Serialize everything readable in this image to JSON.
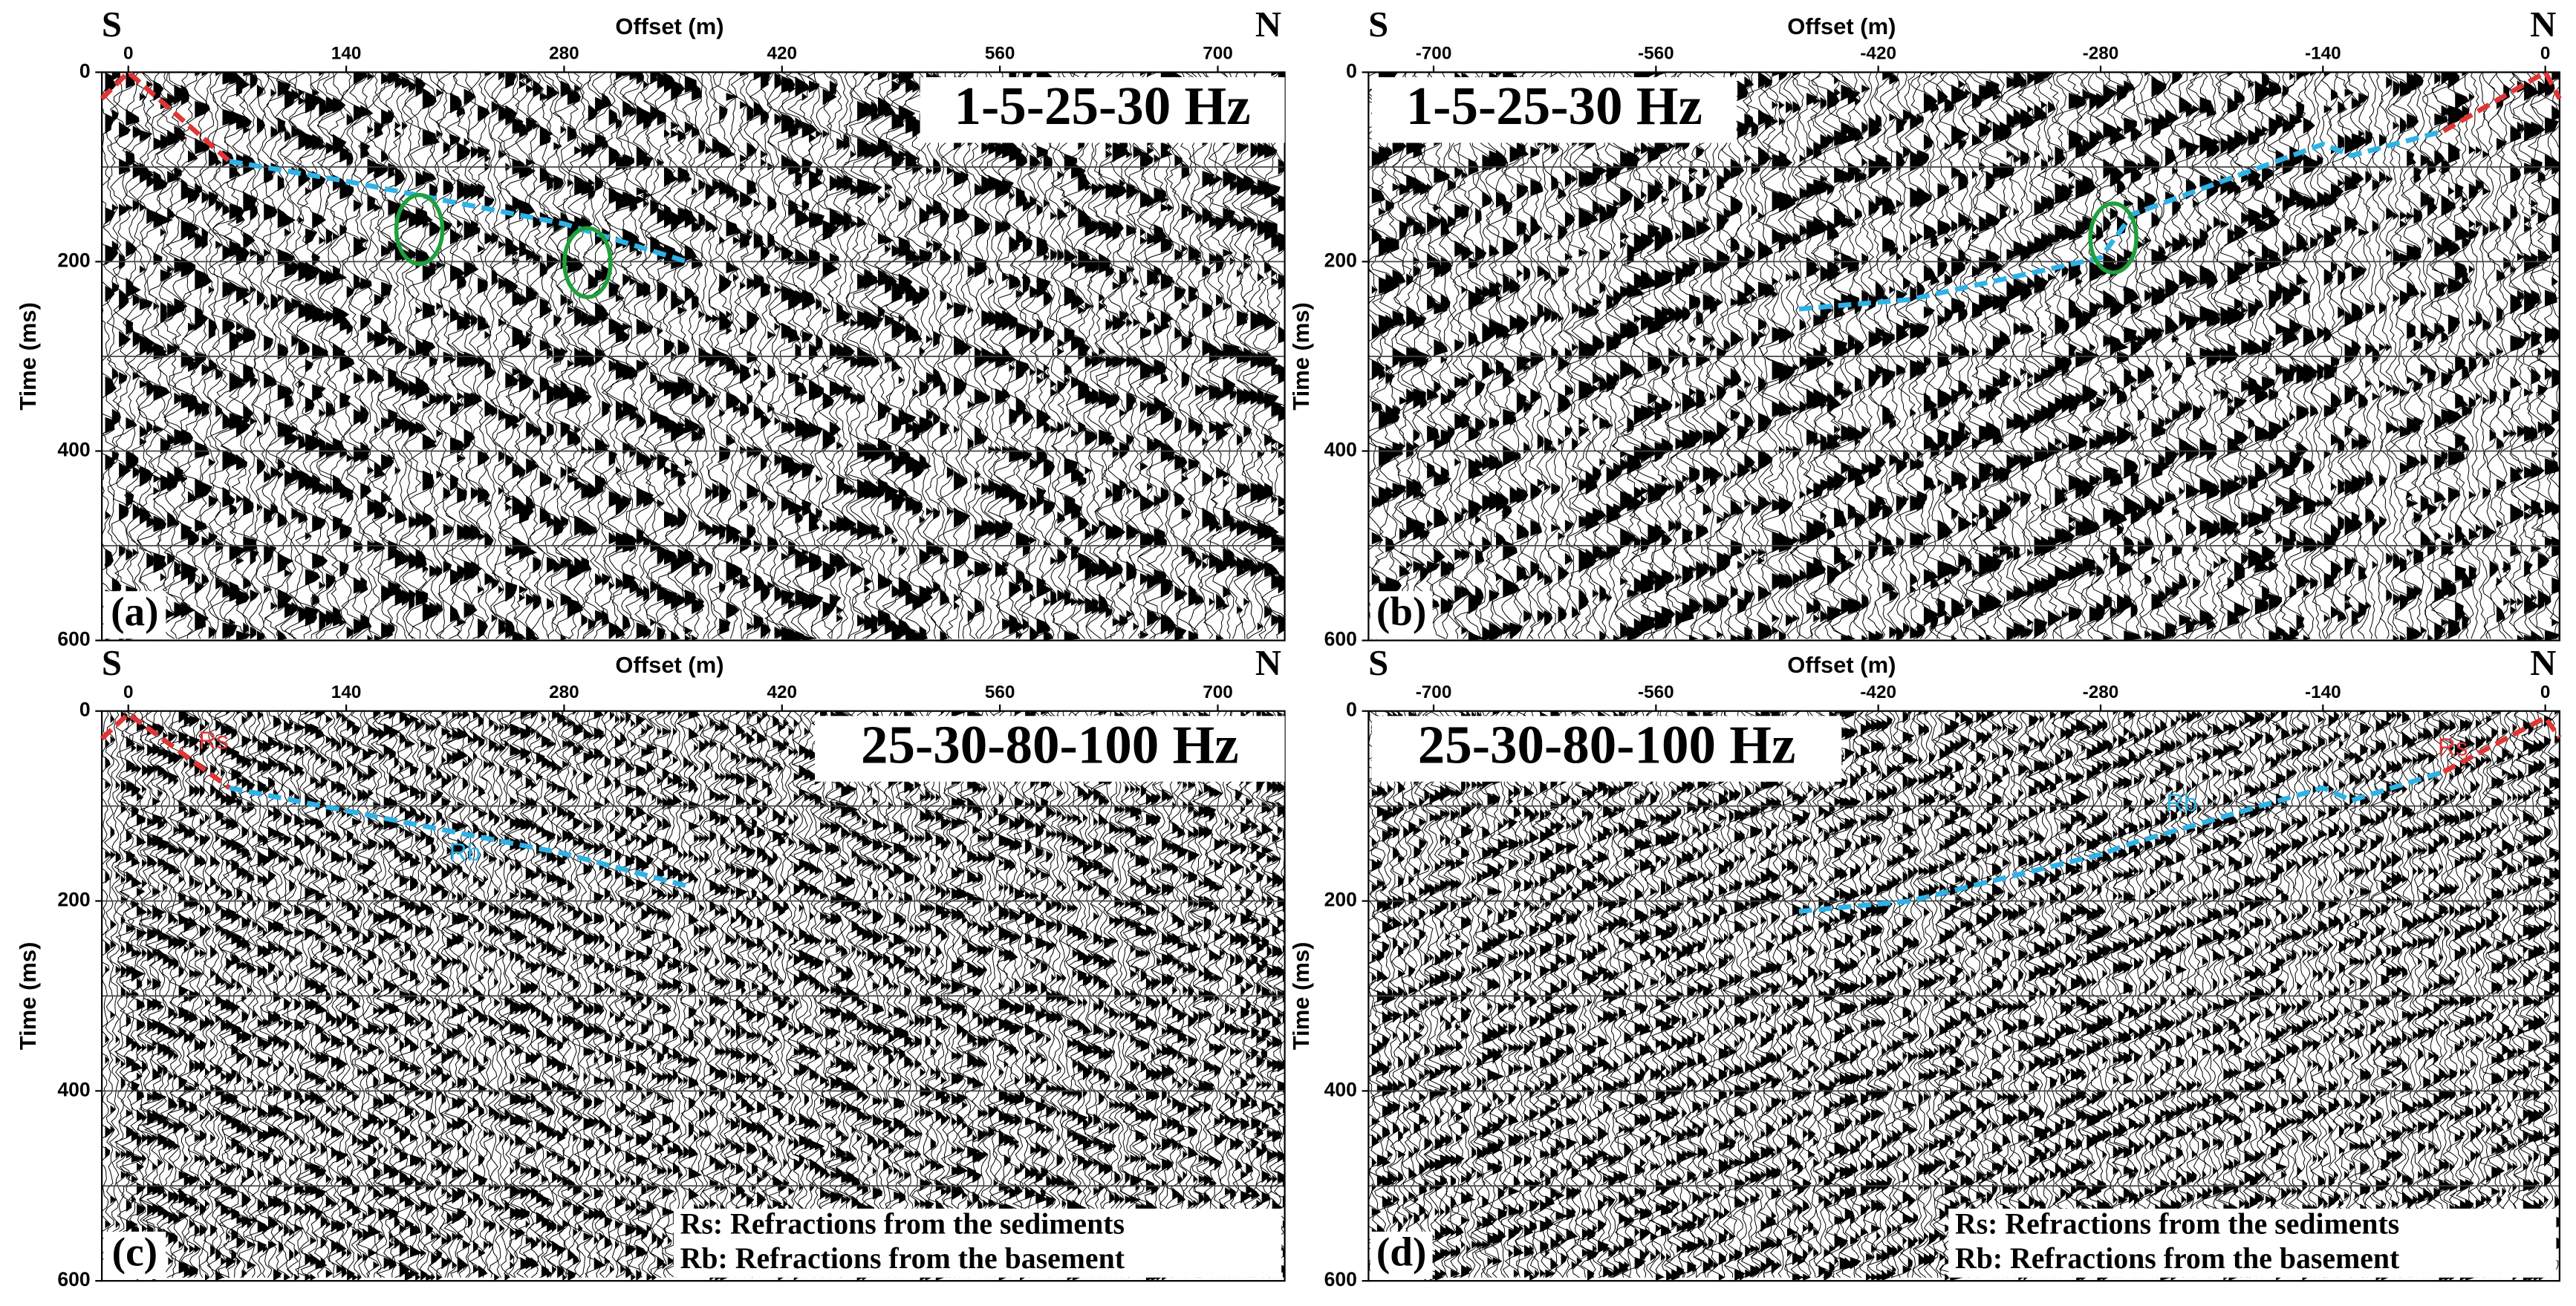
{
  "chart_data": [
    {
      "type": "seismic",
      "panel_label": "(a)",
      "left_label": "S",
      "right_label": "N",
      "x_label": "Offset (m)",
      "y_label": "Time (ms)",
      "filter_label": "1-5-25-30 Hz",
      "xlim": [
        -17,
        743
      ],
      "xticks": [
        0,
        140,
        280,
        420,
        560,
        700
      ],
      "ylim": [
        0,
        600
      ],
      "yticks": [
        0,
        200,
        400,
        600
      ],
      "ygrid": [
        100,
        200,
        300,
        400,
        500
      ],
      "y_inverted": true,
      "series": [
        {
          "color": "#e03535",
          "x": [
            -17,
            0,
            65
          ],
          "values": [
            28,
            0,
            94
          ]
        },
        {
          "color": "#2fb2e6",
          "x": [
            65,
            140,
            280,
            361
          ],
          "values": [
            94,
            115,
            160,
            201
          ]
        }
      ],
      "circles": {
        "color": "#1fa03c",
        "x": [
          187,
          295
        ],
        "values": [
          166,
          201
        ]
      }
    },
    {
      "type": "seismic",
      "panel_label": "(b)",
      "left_label": "S",
      "right_label": "N",
      "x_label": "Offset (m)",
      "y_label": "Time (ms)",
      "filter_label": "1-5-25-30 Hz",
      "xlim": [
        -741,
        9
      ],
      "xticks": [
        -700,
        -560,
        -420,
        -280,
        -140,
        0
      ],
      "ylim": [
        0,
        600
      ],
      "yticks": [
        0,
        200,
        400,
        600
      ],
      "ygrid": [
        100,
        200,
        300,
        400,
        500
      ],
      "y_inverted": true,
      "series": [
        {
          "color": "#e03535",
          "x": [
            -64,
            0,
            9
          ],
          "values": [
            62,
            0,
            28
          ]
        },
        {
          "color": "#2fb2e6",
          "x": [
            -470,
            -400,
            -280,
            -260,
            -140,
            -122,
            -64
          ],
          "values": [
            250,
            240,
            196,
            150,
            76,
            88,
            62
          ]
        }
      ],
      "circles": {
        "color": "#1fa03c",
        "x": [
          -272
        ],
        "values": [
          175
        ]
      }
    },
    {
      "type": "seismic",
      "panel_label": "(c)",
      "left_label": "S",
      "right_label": "N",
      "x_label": "Offset (m)",
      "y_label": "Time (ms)",
      "filter_label": "25-30-80-100 Hz",
      "xlim": [
        -17,
        743
      ],
      "xticks": [
        0,
        140,
        280,
        420,
        560,
        700
      ],
      "ylim": [
        0,
        600
      ],
      "yticks": [
        0,
        200,
        400,
        600
      ],
      "ygrid": [
        100,
        200,
        300,
        400,
        500
      ],
      "y_inverted": true,
      "series": [
        {
          "name": "Rs",
          "color": "#e03535",
          "x": [
            -17,
            0,
            65
          ],
          "values": [
            29,
            3,
            81
          ]
        },
        {
          "name": "Rb",
          "color": "#2fb2e6",
          "x": [
            65,
            140,
            280,
            361
          ],
          "values": [
            81,
            105,
            150,
            185
          ]
        }
      ],
      "notes": [
        "Rs: Refractions from the sediments",
        "Rb: Refractions from the basement"
      ]
    },
    {
      "type": "seismic",
      "panel_label": "(d)",
      "left_label": "S",
      "right_label": "N",
      "x_label": "Offset (m)",
      "y_label": "Time (ms)",
      "filter_label": "25-30-80-100 Hz",
      "xlim": [
        -741,
        9
      ],
      "xticks": [
        -700,
        -560,
        -420,
        -280,
        -140,
        0
      ],
      "ylim": [
        0,
        600
      ],
      "yticks": [
        0,
        200,
        400,
        600
      ],
      "ygrid": [
        100,
        200,
        300,
        400,
        500
      ],
      "y_inverted": true,
      "series": [
        {
          "name": "Rs",
          "color": "#e03535",
          "x": [
            -64,
            0,
            9
          ],
          "values": [
            64,
            7,
            28
          ]
        },
        {
          "name": "Rb",
          "color": "#2fb2e6",
          "x": [
            -470,
            -400,
            -280,
            -260,
            -140,
            -122,
            -64
          ],
          "values": [
            211,
            200,
            151,
            139,
            81,
            94,
            64
          ]
        }
      ],
      "notes": [
        "Rs: Refractions from the sediments",
        "Rb: Refractions from the basement"
      ]
    }
  ]
}
